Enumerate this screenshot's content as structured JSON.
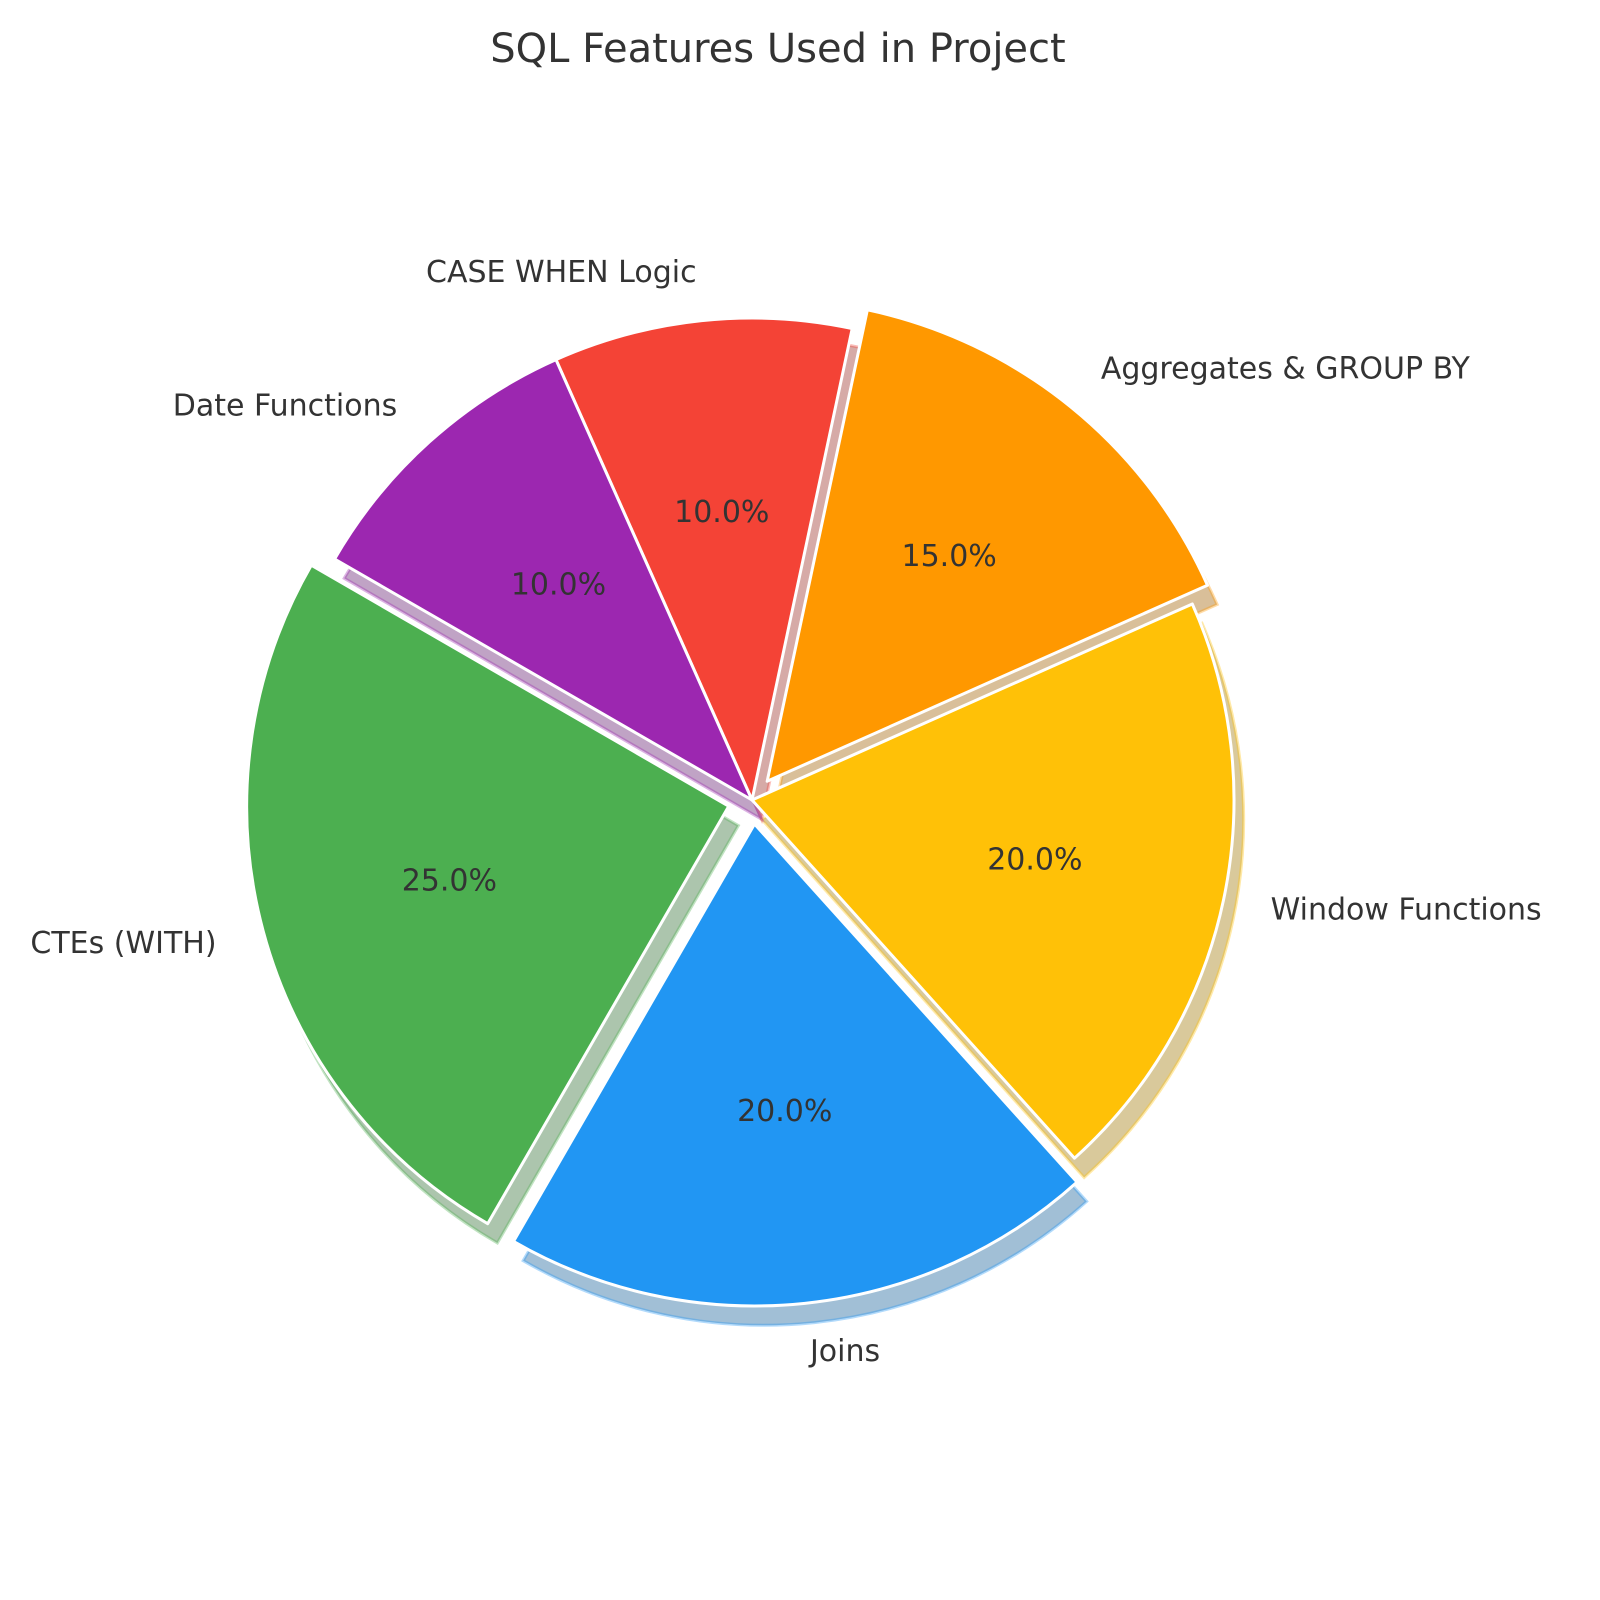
{
  "chart_data": {
    "type": "pie",
    "title": "SQL Features Used in Project",
    "slices": [
      {
        "label": "Joins",
        "value": 20,
        "pct_label": "20.0%",
        "color": "#2196F3",
        "exploded": true
      },
      {
        "label": "Window Functions",
        "value": 20,
        "pct_label": "20.0%",
        "color": "#FFC107",
        "exploded": false
      },
      {
        "label": "Aggregates & GROUP BY",
        "value": 15,
        "pct_label": "15.0%",
        "color": "#FF9800",
        "exploded": true
      },
      {
        "label": "CASE WHEN Logic",
        "value": 10,
        "pct_label": "10.0%",
        "color": "#F44336",
        "exploded": false
      },
      {
        "label": "Date Functions",
        "value": 10,
        "pct_label": "10.0%",
        "color": "#9C27B0",
        "exploded": false
      },
      {
        "label": "CTEs (WITH)",
        "value": 25,
        "pct_label": "25.0%",
        "color": "#4CAF50",
        "exploded": true
      }
    ],
    "shadow": true,
    "start_angle_deg": -120,
    "direction": "counterclockwise",
    "legend": "none"
  }
}
